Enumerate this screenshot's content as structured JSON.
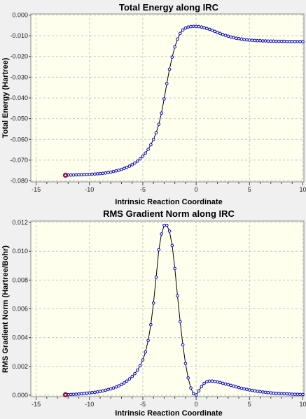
{
  "chart_data": [
    {
      "type": "line",
      "title": "Total Energy along IRC",
      "xlabel": "Intrinsic Reaction Coordinate",
      "ylabel": "Total Energy (Hartree)",
      "xlim": [
        -15.5,
        10.1
      ],
      "ylim": [
        -0.0805,
        0.0005
      ],
      "x_ticks": [
        -15,
        -10,
        -5,
        0,
        5,
        10
      ],
      "x_tick_labels": [
        "-15",
        "-10",
        "-5",
        "0",
        "5",
        "10"
      ],
      "y_ticks": [
        0.0,
        -0.01,
        -0.02,
        -0.03,
        -0.04,
        -0.05,
        -0.06,
        -0.07,
        -0.08
      ],
      "y_tick_labels": [
        "0.000",
        "-0.010",
        "-0.020",
        "-0.030",
        "-0.040",
        "-0.050",
        "-0.060",
        "-0.070",
        "-0.080"
      ],
      "grid": true,
      "legend": "none",
      "series": [
        {
          "color": "#0000cc",
          "x": [
            -12.25,
            -12.0,
            -11.75,
            -11.5,
            -11.25,
            -11.0,
            -10.75,
            -10.5,
            -10.25,
            -10.0,
            -9.75,
            -9.5,
            -9.25,
            -9.0,
            -8.75,
            -8.5,
            -8.25,
            -8.0,
            -7.75,
            -7.5,
            -7.25,
            -7.0,
            -6.75,
            -6.5,
            -6.25,
            -6.0,
            -5.75,
            -5.5,
            -5.25,
            -5.0,
            -4.75,
            -4.5,
            -4.25,
            -4.0,
            -3.75,
            -3.5,
            -3.25,
            -3.0,
            -2.75,
            -2.5,
            -2.25,
            -2.0,
            -1.75,
            -1.5,
            -1.25,
            -1.0,
            -0.75,
            -0.5,
            -0.25,
            0.0,
            0.25,
            0.5,
            0.75,
            1.0,
            1.25,
            1.5,
            1.75,
            2.0,
            2.25,
            2.5,
            2.75,
            3.0,
            3.25,
            3.5,
            3.75,
            4.0,
            4.25,
            4.5,
            4.75,
            5.0,
            5.25,
            5.5,
            5.75,
            6.0,
            6.25,
            6.5,
            6.75,
            7.0,
            7.25,
            7.5,
            7.75,
            8.0,
            8.25,
            8.5,
            8.75,
            9.0,
            9.25,
            9.5,
            9.75,
            10.0
          ],
          "y": [
            -0.0773,
            -0.0772,
            -0.0772,
            -0.0772,
            -0.0771,
            -0.0771,
            -0.0771,
            -0.077,
            -0.077,
            -0.0769,
            -0.0768,
            -0.0767,
            -0.0766,
            -0.0765,
            -0.0764,
            -0.0762,
            -0.076,
            -0.0758,
            -0.0755,
            -0.0752,
            -0.0749,
            -0.0745,
            -0.074,
            -0.0735,
            -0.0729,
            -0.0722,
            -0.0714,
            -0.0705,
            -0.0694,
            -0.0681,
            -0.0666,
            -0.0648,
            -0.0626,
            -0.06,
            -0.0568,
            -0.0527,
            -0.0473,
            -0.0405,
            -0.0331,
            -0.0262,
            -0.0203,
            -0.0154,
            -0.0116,
            -0.0089,
            -0.0072,
            -0.0063,
            -0.0058,
            -0.0056,
            -0.0055,
            -0.0055,
            -0.0056,
            -0.0058,
            -0.0061,
            -0.0065,
            -0.0069,
            -0.0074,
            -0.0079,
            -0.0084,
            -0.0089,
            -0.0094,
            -0.0098,
            -0.0102,
            -0.0106,
            -0.0109,
            -0.0112,
            -0.0114,
            -0.0116,
            -0.0118,
            -0.012,
            -0.0121,
            -0.0122,
            -0.0123,
            -0.0124,
            -0.0124,
            -0.0125,
            -0.0125,
            -0.0126,
            -0.0126,
            -0.0126,
            -0.0127,
            -0.0127,
            -0.0127,
            -0.0127,
            -0.0128,
            -0.0128,
            -0.0128,
            -0.0128,
            -0.0128,
            -0.0128,
            -0.0129
          ]
        }
      ],
      "highlight_point": {
        "x": -12.25,
        "y": -0.0773,
        "color": "#cc0000"
      }
    },
    {
      "type": "line",
      "title": "RMS Gradient Norm along IRC",
      "xlabel": "Intrinsic Reaction Coordinate",
      "ylabel": "RMS Gradient Norm (Hartree/Bohr)",
      "xlim": [
        -15.5,
        10.1
      ],
      "ylim": [
        -0.0001,
        0.0121
      ],
      "x_ticks": [
        -15,
        -10,
        -5,
        0,
        5,
        10
      ],
      "x_tick_labels": [
        "-15",
        "-10",
        "-5",
        "0",
        "5",
        "10"
      ],
      "y_ticks": [
        0.0,
        0.002,
        0.004,
        0.006,
        0.008,
        0.01,
        0.012
      ],
      "y_tick_labels": [
        "0.000",
        "0.002",
        "0.004",
        "0.006",
        "0.008",
        "0.010",
        "0.012"
      ],
      "grid": true,
      "legend": "none",
      "series": [
        {
          "color": "#0000cc",
          "x": [
            -12.25,
            -12.0,
            -11.75,
            -11.5,
            -11.25,
            -11.0,
            -10.75,
            -10.5,
            -10.25,
            -10.0,
            -9.75,
            -9.5,
            -9.25,
            -9.0,
            -8.75,
            -8.5,
            -8.25,
            -8.0,
            -7.75,
            -7.5,
            -7.25,
            -7.0,
            -6.75,
            -6.5,
            -6.25,
            -6.0,
            -5.75,
            -5.5,
            -5.25,
            -5.0,
            -4.75,
            -4.5,
            -4.25,
            -4.0,
            -3.75,
            -3.5,
            -3.25,
            -3.0,
            -2.75,
            -2.5,
            -2.25,
            -2.0,
            -1.75,
            -1.5,
            -1.25,
            -1.0,
            -0.75,
            -0.5,
            -0.25,
            0.0,
            0.25,
            0.5,
            0.75,
            1.0,
            1.25,
            1.5,
            1.75,
            2.0,
            2.25,
            2.5,
            2.75,
            3.0,
            3.25,
            3.5,
            3.75,
            4.0,
            4.25,
            4.5,
            4.75,
            5.0,
            5.25,
            5.5,
            5.75,
            6.0,
            6.25,
            6.5,
            6.75,
            7.0,
            7.25,
            7.5,
            7.75,
            8.0,
            8.25,
            8.5,
            8.75,
            9.0,
            9.25,
            9.5,
            9.75,
            10.0
          ],
          "y": [
            3e-05,
            4e-05,
            5e-05,
            6e-05,
            7e-05,
            8e-05,
            0.0001,
            0.00012,
            0.00014,
            0.00016,
            0.00018,
            0.0002,
            0.00023,
            0.00026,
            0.0003,
            0.00034,
            0.00039,
            0.00044,
            0.0005,
            0.00057,
            0.00065,
            0.00074,
            0.00085,
            0.00098,
            0.00113,
            0.0013,
            0.0015,
            0.00174,
            0.00205,
            0.00245,
            0.003,
            0.0038,
            0.0049,
            0.0064,
            0.0082,
            0.0101,
            0.0112,
            0.0118,
            0.0118,
            0.0114,
            0.0104,
            0.0088,
            0.0069,
            0.0051,
            0.0035,
            0.0022,
            0.0012,
            0.0005,
            0.0001,
            2e-05,
            0.0003,
            0.0006,
            0.00082,
            0.00094,
            0.00098,
            0.00098,
            0.00096,
            0.00092,
            0.00088,
            0.00083,
            0.00078,
            0.00073,
            0.00068,
            0.00063,
            0.00058,
            0.00053,
            0.00048,
            0.00044,
            0.0004,
            0.00036,
            0.00033,
            0.0003,
            0.00027,
            0.00024,
            0.00022,
            0.0002,
            0.00018,
            0.00016,
            0.00014,
            0.00013,
            0.00012,
            0.00011,
            0.0001,
            9e-05,
            8e-05,
            7e-05,
            6e-05,
            6e-05,
            5e-05,
            5e-05
          ]
        }
      ],
      "highlight_point": {
        "x": -12.25,
        "y": 3e-05,
        "color": "#cc0000"
      }
    }
  ]
}
